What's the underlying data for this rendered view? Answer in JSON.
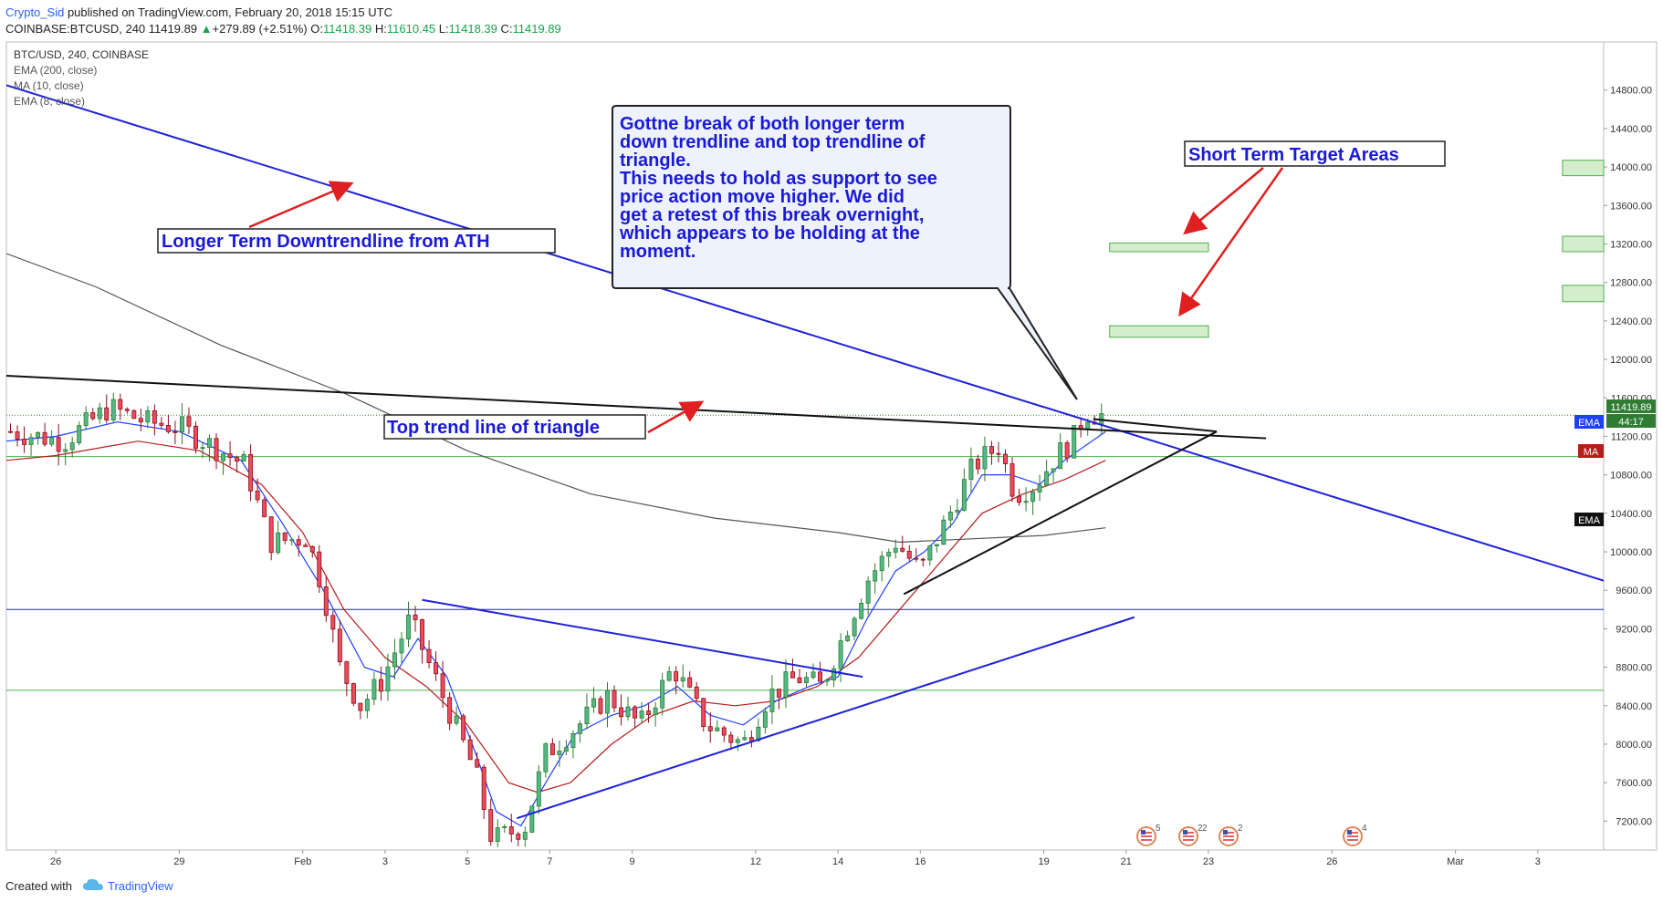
{
  "header": {
    "author": "Crypto_Sid",
    "published_text": "published on TradingView.com, February 20, 2018 15:15 UTC",
    "symbol_line": "COINBASE:BTCUSD, 240",
    "last_price": "11419.89",
    "change_arrow": "▲",
    "change": "+279.89 (+2.51%)",
    "open_label": "O:",
    "open": "11418.39",
    "high_label": "H:",
    "high": "11610.45",
    "low_label": "L:",
    "low": "11418.39",
    "close_label": "C:",
    "close": "11419.89"
  },
  "footer": {
    "created_with": "Created with",
    "brand": "TradingView"
  },
  "legend": {
    "title": "BTC/USD, 240, COINBASE",
    "items": [
      "EMA (200, close)",
      "MA (10, close)",
      "EMA (8, close)"
    ]
  },
  "annotations": {
    "downtrend_label": "Longer Term Downtrendline from ATH",
    "triangle_label": "Top trend line of triangle",
    "target_label": "Short Term Target Areas",
    "callout_lines": [
      "Gottne break of both longer term",
      "down trendline and top trendline of",
      "triangle.",
      "",
      "This needs to hold as support to see",
      "price action move higher.  We did",
      "get a retest of this break overnight,",
      "which appears to be holding at the",
      "moment."
    ]
  },
  "price_tags": {
    "last_price": "11419.89",
    "countdown": "44:17",
    "ema_label": "EMA",
    "ma_label": "MA"
  },
  "event_markers": [
    "5",
    "2",
    "2",
    "2",
    "4"
  ],
  "colors": {
    "up_candle": "#53b987",
    "down_candle": "#eb4d5c",
    "candle_dark_up": "#2e7d32",
    "candle_dark_down": "#8e0c1c",
    "ema200": "#555555",
    "ma10": "#b71c1c",
    "ema8": "#1e40ff",
    "trendline_blue": "#1e22d8",
    "trendline_black": "#111111",
    "horizontal_green": "#4caf50",
    "target_zone": "#d4edcc",
    "arrow_red": "#e02020",
    "label_text": "#1a1ad6"
  },
  "chart_data": {
    "type": "candlestick",
    "title": "BTC/USD, 240, COINBASE",
    "y_axis": {
      "ticks": [
        7200,
        7600,
        8000,
        8400,
        8800,
        9200,
        9600,
        10000,
        10400,
        10800,
        11200,
        11600,
        12000,
        12400,
        12800,
        13200,
        13600,
        14000,
        14400,
        14800
      ],
      "tick_labels": [
        "7200.00",
        "7600.00",
        "8000.00",
        "8400.00",
        "8800.00",
        "9200.00",
        "9600.00",
        "10000.00",
        "10400.00",
        "10800.00",
        "11200.00",
        "11600.00",
        "12000.00",
        "12400.00",
        "12800.00",
        "13200.00",
        "13600.00",
        "14000.00",
        "14400.00",
        "14800.00"
      ],
      "ylim": [
        6900,
        15300
      ]
    },
    "x_axis": {
      "ticks": [
        {
          "label": "26",
          "day": 26
        },
        {
          "label": "29",
          "day": 29
        },
        {
          "label": "Feb",
          "day": 32
        },
        {
          "label": "3",
          "day": 34
        },
        {
          "label": "5",
          "day": 36
        },
        {
          "label": "7",
          "day": 38
        },
        {
          "label": "9",
          "day": 40
        },
        {
          "label": "12",
          "day": 43
        },
        {
          "label": "14",
          "day": 45
        },
        {
          "label": "16",
          "day": 47
        },
        {
          "label": "19",
          "day": 50
        },
        {
          "label": "21",
          "day": 52
        },
        {
          "label": "23",
          "day": 54
        },
        {
          "label": "26",
          "day": 57
        },
        {
          "label": "Mar",
          "day": 60
        },
        {
          "label": "3",
          "day": 62
        }
      ],
      "day_range": [
        24.8,
        63.6
      ]
    },
    "price_anchors": [
      {
        "day": 24.9,
        "price": 11250
      },
      {
        "day": 26.2,
        "price": 11150
      },
      {
        "day": 27.3,
        "price": 11500
      },
      {
        "day": 28.2,
        "price": 11350
      },
      {
        "day": 29.0,
        "price": 11300
      },
      {
        "day": 29.8,
        "price": 11100
      },
      {
        "day": 30.6,
        "price": 10900
      },
      {
        "day": 31.2,
        "price": 10100
      },
      {
        "day": 32.1,
        "price": 10150
      },
      {
        "day": 32.5,
        "price": 9600
      },
      {
        "day": 32.9,
        "price": 8800
      },
      {
        "day": 33.4,
        "price": 8400
      },
      {
        "day": 33.9,
        "price": 8650
      },
      {
        "day": 34.6,
        "price": 9300
      },
      {
        "day": 35.2,
        "price": 8700
      },
      {
        "day": 35.7,
        "price": 8200
      },
      {
        "day": 36.2,
        "price": 7700
      },
      {
        "day": 36.6,
        "price": 7000
      },
      {
        "day": 37.4,
        "price": 7150
      },
      {
        "day": 37.9,
        "price": 7900
      },
      {
        "day": 38.7,
        "price": 8200
      },
      {
        "day": 39.4,
        "price": 8500
      },
      {
        "day": 40.2,
        "price": 8200
      },
      {
        "day": 41.0,
        "price": 8800
      },
      {
        "day": 41.8,
        "price": 8200
      },
      {
        "day": 42.7,
        "price": 8000
      },
      {
        "day": 43.3,
        "price": 8500
      },
      {
        "day": 44.0,
        "price": 8700
      },
      {
        "day": 44.6,
        "price": 8600
      },
      {
        "day": 45.1,
        "price": 9100
      },
      {
        "day": 45.7,
        "price": 9700
      },
      {
        "day": 46.4,
        "price": 10100
      },
      {
        "day": 47.0,
        "price": 9800
      },
      {
        "day": 47.6,
        "price": 10300
      },
      {
        "day": 48.3,
        "price": 10900
      },
      {
        "day": 48.9,
        "price": 11100
      },
      {
        "day": 49.3,
        "price": 10600
      },
      {
        "day": 49.8,
        "price": 10700
      },
      {
        "day": 50.3,
        "price": 11000
      },
      {
        "day": 50.7,
        "price": 11150
      },
      {
        "day": 51.0,
        "price": 11450
      },
      {
        "day": 51.4,
        "price": 11420
      }
    ],
    "indicators": [
      {
        "name": "EMA (200, close)",
        "points": [
          [
            24.8,
            13100
          ],
          [
            27,
            12750
          ],
          [
            30,
            12150
          ],
          [
            33,
            11650
          ],
          [
            36,
            11050
          ],
          [
            39,
            10600
          ],
          [
            42,
            10350
          ],
          [
            45,
            10200
          ],
          [
            46.5,
            10100
          ],
          [
            48,
            10130
          ],
          [
            50,
            10170
          ],
          [
            51.5,
            10250
          ]
        ]
      },
      {
        "name": "MA (10, close)",
        "points": [
          [
            24.8,
            10950
          ],
          [
            26,
            11000
          ],
          [
            28,
            11150
          ],
          [
            29.5,
            11050
          ],
          [
            31,
            10700
          ],
          [
            32,
            10200
          ],
          [
            33,
            9400
          ],
          [
            34,
            8900
          ],
          [
            35,
            8600
          ],
          [
            36,
            8200
          ],
          [
            37,
            7600
          ],
          [
            37.7,
            7500
          ],
          [
            38.5,
            7600
          ],
          [
            39.5,
            8000
          ],
          [
            40.5,
            8300
          ],
          [
            41.5,
            8450
          ],
          [
            42.5,
            8400
          ],
          [
            43.5,
            8450
          ],
          [
            44.5,
            8600
          ],
          [
            45.5,
            8900
          ],
          [
            46.5,
            9400
          ],
          [
            47.5,
            9900
          ],
          [
            48.5,
            10400
          ],
          [
            49.5,
            10600
          ],
          [
            50.5,
            10750
          ],
          [
            51.5,
            10950
          ]
        ]
      },
      {
        "name": "EMA (8, close)",
        "points": [
          [
            24.8,
            11150
          ],
          [
            26,
            11200
          ],
          [
            27.5,
            11350
          ],
          [
            29,
            11250
          ],
          [
            30.5,
            10950
          ],
          [
            31.5,
            10300
          ],
          [
            32.5,
            9600
          ],
          [
            33.5,
            8800
          ],
          [
            34.2,
            8700
          ],
          [
            34.8,
            9100
          ],
          [
            35.5,
            8700
          ],
          [
            36.2,
            7900
          ],
          [
            36.7,
            7300
          ],
          [
            37.3,
            7150
          ],
          [
            37.9,
            7600
          ],
          [
            38.6,
            8100
          ],
          [
            39.5,
            8300
          ],
          [
            40.3,
            8400
          ],
          [
            41.1,
            8600
          ],
          [
            41.9,
            8300
          ],
          [
            42.7,
            8200
          ],
          [
            43.5,
            8450
          ],
          [
            44.3,
            8600
          ],
          [
            45.0,
            8700
          ],
          [
            45.7,
            9300
          ],
          [
            46.4,
            9800
          ],
          [
            47.1,
            10000
          ],
          [
            47.8,
            10300
          ],
          [
            48.5,
            10800
          ],
          [
            49.2,
            10800
          ],
          [
            49.9,
            10700
          ],
          [
            50.5,
            10950
          ],
          [
            51.5,
            11250
          ]
        ]
      }
    ],
    "trendlines": [
      {
        "name": "long-term-downtrend",
        "color_key": "trendline_blue",
        "points": [
          [
            24.8,
            14850
          ],
          [
            63.6,
            9700
          ]
        ]
      },
      {
        "name": "triangle-top",
        "color_key": "trendline_black",
        "points": [
          [
            24.8,
            11830
          ],
          [
            55.4,
            11180
          ]
        ]
      },
      {
        "name": "triangle-bottom",
        "color_key": "trendline_black",
        "points": [
          [
            46.6,
            9560
          ],
          [
            54.2,
            11250
          ]
        ]
      },
      {
        "name": "triangle-apex-top",
        "color_key": "trendline_black",
        "points": [
          [
            51.2,
            11380
          ],
          [
            54.2,
            11250
          ]
        ]
      },
      {
        "name": "falling-wedge-top",
        "color_key": "trendline_blue",
        "points": [
          [
            34.9,
            9500
          ],
          [
            45.6,
            8700
          ]
        ]
      },
      {
        "name": "rising-support",
        "color_key": "trendline_blue",
        "points": [
          [
            37.2,
            7230
          ],
          [
            52.2,
            9320
          ]
        ]
      }
    ],
    "horizontal_lines": [
      {
        "name": "support-blue",
        "price": 9400,
        "color_key": "trendline_blue"
      },
      {
        "name": "support-green-upper",
        "price": 10990,
        "color_key": "horizontal_green"
      },
      {
        "name": "support-green-lower",
        "price": 8560,
        "color_key": "horizontal_green"
      }
    ],
    "target_zones": [
      {
        "day_start": 51.6,
        "day_end": 54.0,
        "low": 12230,
        "high": 12350
      },
      {
        "day_start": 51.6,
        "day_end": 54.0,
        "low": 13120,
        "high": 13210
      },
      {
        "day_start": 62.6,
        "day_end": 63.6,
        "low": 12600,
        "high": 12770
      },
      {
        "day_start": 62.6,
        "day_end": 63.6,
        "low": 13120,
        "high": 13280
      },
      {
        "day_start": 62.6,
        "day_end": 63.6,
        "low": 13910,
        "high": 14070
      }
    ]
  }
}
